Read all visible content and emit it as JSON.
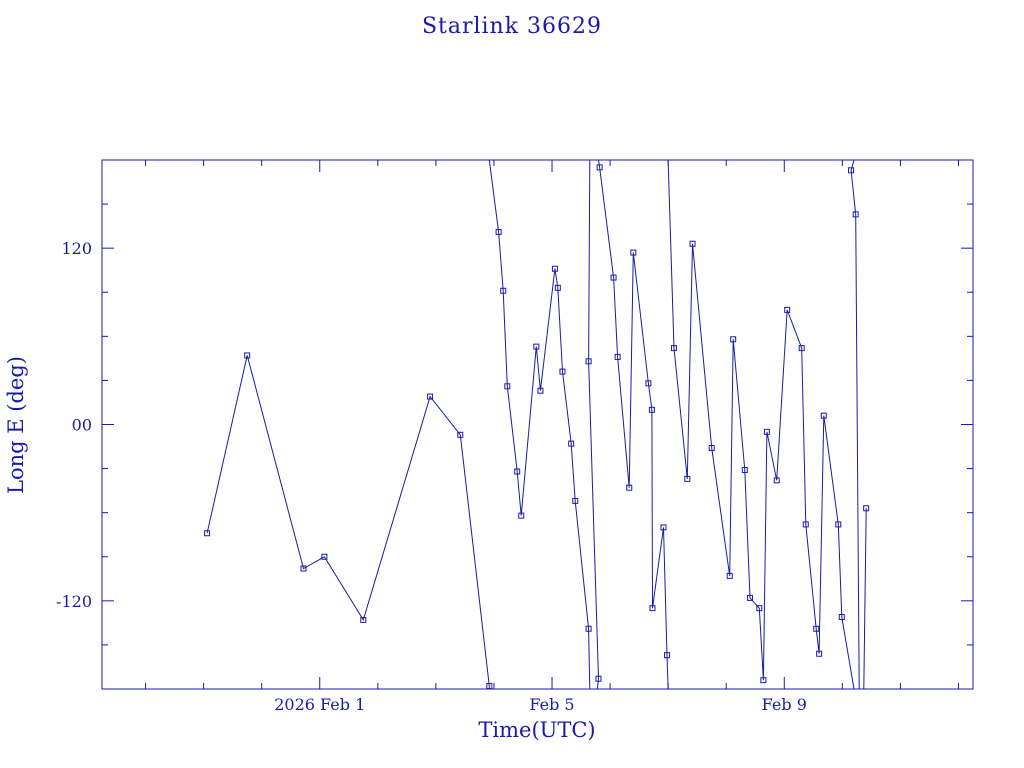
{
  "chart_data": {
    "type": "line",
    "title": "Starlink 36629",
    "xlabel": "Time(UTC)",
    "ylabel": "Long E (deg)",
    "x_tick_labels": [
      {
        "day": 1,
        "label": "2026 Feb  1"
      },
      {
        "day": 5,
        "label": "Feb  5"
      },
      {
        "day": 9,
        "label": "Feb  9"
      }
    ],
    "y_tick_labels": [
      {
        "value": 120,
        "label": "120"
      },
      {
        "value": 0,
        "label": "00"
      },
      {
        "value": -120,
        "label": "-120"
      }
    ],
    "xlim_days": [
      -2.75,
      12.25
    ],
    "ylim": [
      -180,
      180
    ],
    "series": [
      {
        "values": [
          [
            -0.94,
            -74
          ],
          [
            -0.25,
            47
          ],
          [
            0.72,
            -98
          ],
          [
            1.08,
            -90
          ],
          [
            1.75,
            -133
          ],
          [
            2.9,
            19
          ],
          [
            3.42,
            -7
          ],
          [
            3.92,
            -178
          ],
          [
            3.92,
            -180,
            "break"
          ],
          [
            3.92,
            180
          ],
          [
            4.08,
            131
          ],
          [
            4.16,
            91
          ],
          [
            4.23,
            26
          ],
          [
            4.4,
            -32
          ],
          [
            4.47,
            -62
          ],
          [
            4.73,
            53
          ],
          [
            4.8,
            23
          ],
          [
            5.05,
            106
          ],
          [
            5.1,
            93
          ],
          [
            5.18,
            36
          ],
          [
            5.33,
            -13
          ],
          [
            5.4,
            -52
          ],
          [
            5.63,
            -139
          ],
          [
            5.65,
            -180,
            "break"
          ],
          [
            5.65,
            180
          ],
          [
            5.63,
            43
          ],
          [
            5.8,
            -173
          ],
          [
            5.78,
            -180,
            "break"
          ],
          [
            5.8,
            180
          ],
          [
            5.82,
            175
          ],
          [
            6.06,
            100
          ],
          [
            6.13,
            46
          ],
          [
            6.33,
            -43
          ],
          [
            6.4,
            117
          ],
          [
            6.66,
            28
          ],
          [
            6.72,
            10
          ],
          [
            6.73,
            -125
          ],
          [
            6.92,
            -70
          ],
          [
            6.98,
            -157
          ],
          [
            7.0,
            -180,
            "break"
          ],
          [
            7.0,
            180
          ],
          [
            7.1,
            52
          ],
          [
            7.33,
            -37
          ],
          [
            7.42,
            123
          ],
          [
            7.75,
            -16
          ],
          [
            8.06,
            -103
          ],
          [
            8.12,
            58
          ],
          [
            8.32,
            -31
          ],
          [
            8.41,
            -118
          ],
          [
            8.57,
            -125
          ],
          [
            8.64,
            -174
          ],
          [
            8.7,
            -5
          ],
          [
            8.87,
            -38
          ],
          [
            9.05,
            78
          ],
          [
            9.3,
            52
          ],
          [
            9.37,
            -68
          ],
          [
            9.55,
            -139
          ],
          [
            9.6,
            -156
          ],
          [
            9.68,
            6
          ],
          [
            9.93,
            -68
          ],
          [
            9.99,
            -131
          ],
          [
            10.2,
            -180,
            "break"
          ],
          [
            10.2,
            180
          ],
          [
            10.15,
            173
          ],
          [
            10.23,
            143
          ],
          [
            10.29,
            -180,
            "break"
          ],
          [
            10.29,
            180
          ]
        ]
      },
      {
        "values": [
          [
            10.37,
            -180
          ],
          [
            10.41,
            -57
          ]
        ]
      }
    ],
    "grid": false,
    "legend": "none"
  }
}
